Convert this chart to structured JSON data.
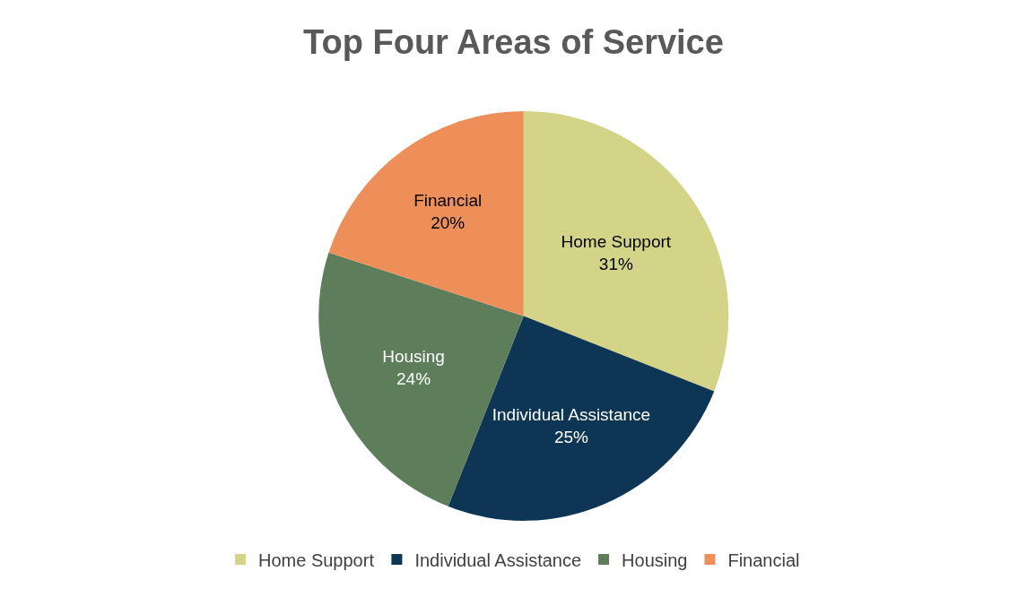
{
  "chart_data": {
    "type": "pie",
    "title": "Top Four Areas of Service",
    "categories": [
      "Home Support",
      "Individual Assistance",
      "Housing",
      "Financial"
    ],
    "values": [
      31,
      25,
      24,
      20
    ],
    "value_labels": [
      "31%",
      "25%",
      "24%",
      "20%"
    ],
    "colors": [
      "#d3d488",
      "#0d3554",
      "#5e7d5b",
      "#ee8f5a"
    ],
    "legend": "bottom"
  }
}
